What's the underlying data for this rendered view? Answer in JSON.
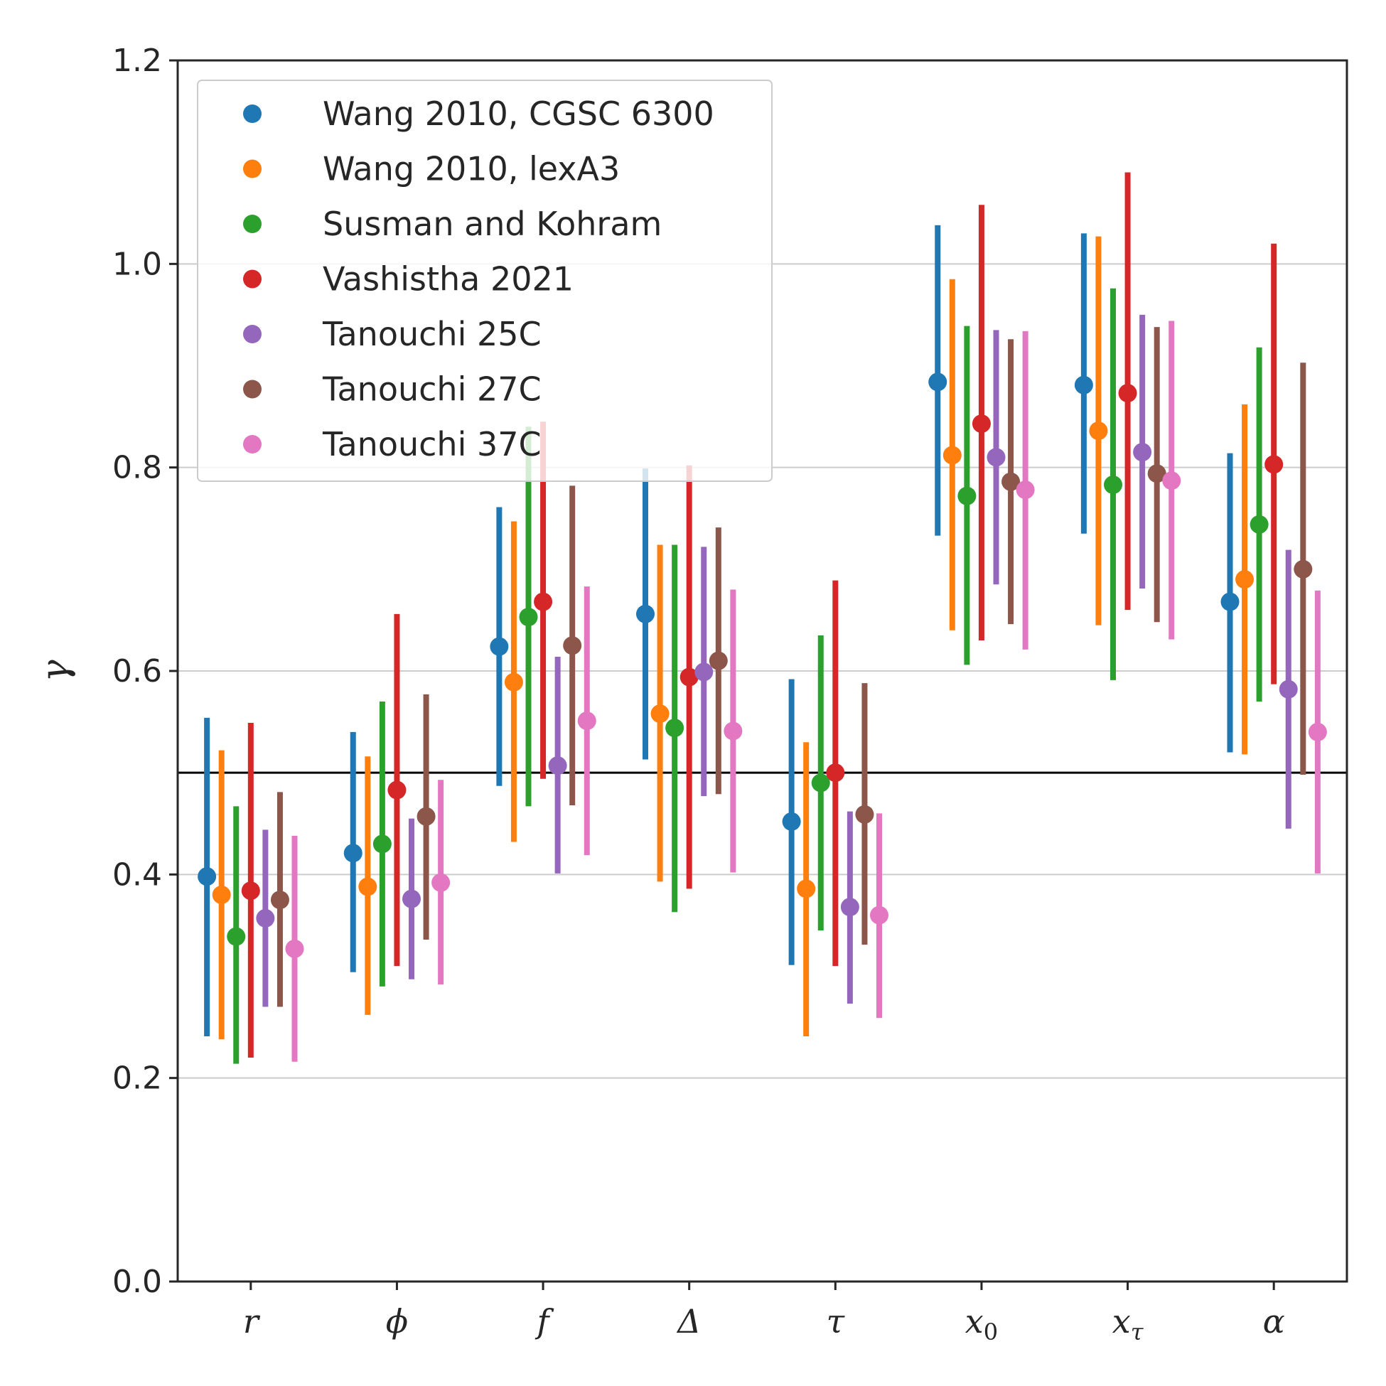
{
  "chart_data": {
    "type": "scatter",
    "title": "",
    "xlabel": "",
    "ylabel": "γ",
    "ylim": [
      0.0,
      1.2
    ],
    "yticks": [
      "0.0",
      "0.2",
      "0.4",
      "0.6",
      "0.8",
      "1.0",
      "1.2"
    ],
    "grid": "horizontal",
    "reference_line": 0.5,
    "legend_position": "top-left",
    "categories": [
      {
        "base": "r",
        "sub": ""
      },
      {
        "base": "ϕ",
        "sub": ""
      },
      {
        "base": "f",
        "sub": ""
      },
      {
        "base": "Δ",
        "sub": ""
      },
      {
        "base": "τ",
        "sub": ""
      },
      {
        "base": "x",
        "sub": "0"
      },
      {
        "base": "x",
        "sub": "τ"
      },
      {
        "base": "α",
        "sub": ""
      }
    ],
    "series": [
      {
        "name": "Wang 2010, CGSC 6300",
        "color": "#1f77b4",
        "values": [
          0.398,
          0.421,
          0.624,
          0.656,
          0.452,
          0.884,
          0.881,
          0.668
        ],
        "lower": [
          0.241,
          0.304,
          0.487,
          0.513,
          0.311,
          0.733,
          0.735,
          0.52
        ],
        "upper": [
          0.554,
          0.54,
          0.761,
          0.799,
          0.592,
          1.038,
          1.03,
          0.814
        ]
      },
      {
        "name": "Wang 2010, lexA3",
        "color": "#ff7f0e",
        "values": [
          0.38,
          0.388,
          0.589,
          0.558,
          0.386,
          0.812,
          0.836,
          0.69
        ],
        "lower": [
          0.238,
          0.262,
          0.432,
          0.393,
          0.241,
          0.64,
          0.645,
          0.518
        ],
        "upper": [
          0.522,
          0.516,
          0.747,
          0.724,
          0.53,
          0.985,
          1.027,
          0.862
        ]
      },
      {
        "name": "Susman and Kohram",
        "color": "#2ca02c",
        "values": [
          0.339,
          0.43,
          0.653,
          0.544,
          0.49,
          0.772,
          0.783,
          0.744
        ],
        "lower": [
          0.214,
          0.29,
          0.467,
          0.363,
          0.345,
          0.606,
          0.591,
          0.57
        ],
        "upper": [
          0.467,
          0.57,
          0.84,
          0.724,
          0.635,
          0.939,
          0.976,
          0.918
        ]
      },
      {
        "name": "Vashistha 2021",
        "color": "#d62728",
        "values": [
          0.384,
          0.483,
          0.668,
          0.594,
          0.5,
          0.843,
          0.873,
          0.803
        ],
        "lower": [
          0.22,
          0.31,
          0.494,
          0.386,
          0.31,
          0.63,
          0.66,
          0.587
        ],
        "upper": [
          0.549,
          0.656,
          0.845,
          0.802,
          0.689,
          1.058,
          1.09,
          1.02
        ]
      },
      {
        "name": "Tanouchi 25C",
        "color": "#9467bd",
        "values": [
          0.357,
          0.376,
          0.507,
          0.599,
          0.368,
          0.81,
          0.815,
          0.582
        ],
        "lower": [
          0.27,
          0.297,
          0.401,
          0.477,
          0.273,
          0.685,
          0.681,
          0.445
        ],
        "upper": [
          0.444,
          0.455,
          0.614,
          0.722,
          0.462,
          0.935,
          0.95,
          0.719
        ]
      },
      {
        "name": "Tanouchi 27C",
        "color": "#8c564b",
        "values": [
          0.375,
          0.457,
          0.625,
          0.61,
          0.459,
          0.786,
          0.794,
          0.7
        ],
        "lower": [
          0.27,
          0.336,
          0.468,
          0.479,
          0.331,
          0.646,
          0.648,
          0.498
        ],
        "upper": [
          0.481,
          0.577,
          0.782,
          0.741,
          0.588,
          0.926,
          0.938,
          0.903
        ]
      },
      {
        "name": "Tanouchi 37C",
        "color": "#e377c2",
        "values": [
          0.327,
          0.392,
          0.551,
          0.541,
          0.36,
          0.778,
          0.787,
          0.54
        ],
        "lower": [
          0.216,
          0.292,
          0.419,
          0.402,
          0.259,
          0.621,
          0.631,
          0.401
        ],
        "upper": [
          0.438,
          0.493,
          0.683,
          0.68,
          0.46,
          0.934,
          0.944,
          0.679
        ]
      }
    ]
  }
}
